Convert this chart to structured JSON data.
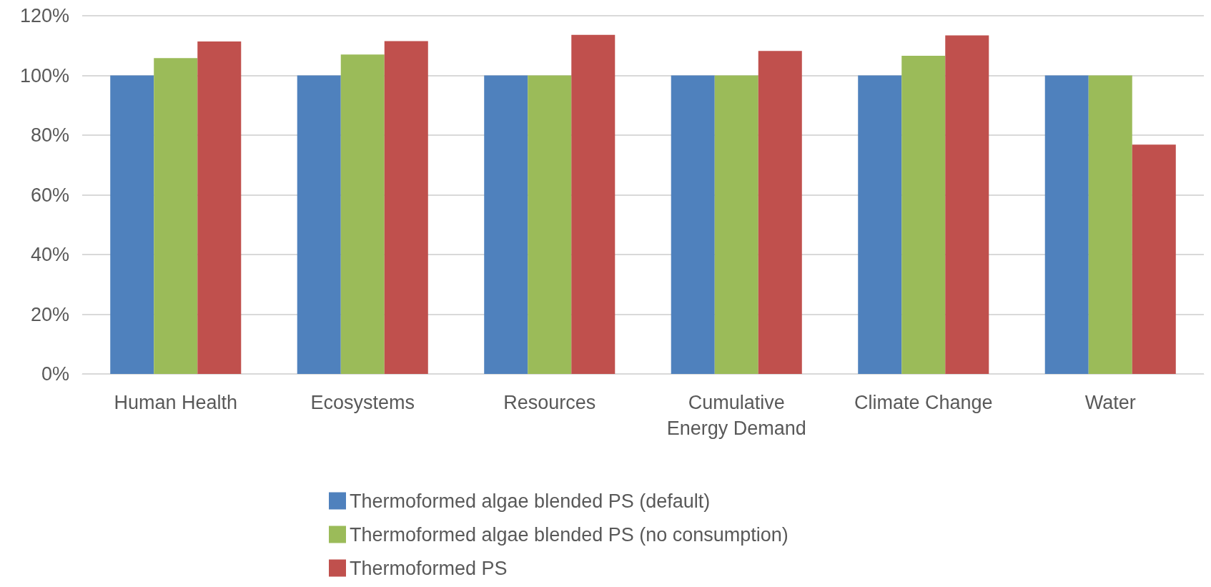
{
  "chart_data": {
    "type": "bar",
    "categories": [
      "Human Health",
      "Ecosystems",
      "Resources",
      "Cumulative\nEnergy Demand",
      "Climate Change",
      "Water"
    ],
    "series": [
      {
        "name": "Thermoformed algae blended PS (default)",
        "color": "#4f81bd",
        "values": [
          100,
          100,
          100,
          100,
          100,
          100
        ]
      },
      {
        "name": "Thermoformed algae blended PS (no consumption)",
        "color": "#9bbb59",
        "values": [
          105.8,
          107,
          100,
          100,
          106.6,
          100
        ]
      },
      {
        "name": "Thermoformed PS",
        "color": "#c0504d",
        "values": [
          111.4,
          111.5,
          113.6,
          108.2,
          113.4,
          76.8
        ]
      }
    ],
    "ylim": [
      0,
      120
    ],
    "yticks": [
      {
        "value": 0,
        "label": "0%"
      },
      {
        "value": 20,
        "label": "20%"
      },
      {
        "value": 40,
        "label": "40%"
      },
      {
        "value": 60,
        "label": "60%"
      },
      {
        "value": 80,
        "label": "80%"
      },
      {
        "value": 100,
        "label": "100%"
      },
      {
        "value": 120,
        "label": "120%"
      }
    ],
    "grid": "y",
    "legend": "bottom"
  }
}
